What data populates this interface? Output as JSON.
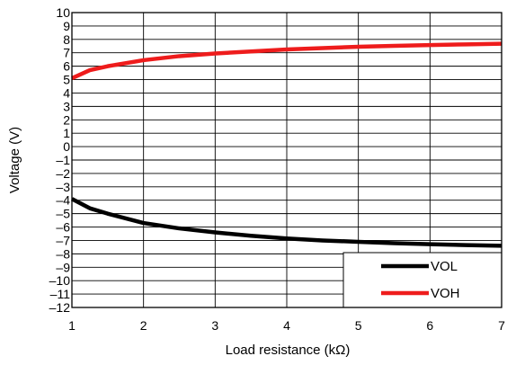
{
  "chart_data": {
    "type": "line",
    "xlabel": "Load resistance (kΩ)",
    "ylabel": "Voltage (V)",
    "xlim": [
      1,
      7
    ],
    "ylim": [
      -12,
      10
    ],
    "x_ticks": [
      "1",
      "2",
      "3",
      "4",
      "5",
      "6",
      "7"
    ],
    "y_ticks": [
      "10",
      "9",
      "8",
      "7",
      "6",
      "5",
      "4",
      "3",
      "2",
      "1",
      "0",
      "–1",
      "–2",
      "–3",
      "–4",
      "–5",
      "–6",
      "–7",
      "–8",
      "–9",
      "–10",
      "–11",
      "–12"
    ],
    "grid": true,
    "legend_position": "bottom-right",
    "series": [
      {
        "name": "VOL",
        "color": "#000000",
        "x": [
          1,
          1.25,
          1.5,
          2,
          2.5,
          3,
          3.5,
          4,
          4.5,
          5,
          5.5,
          6,
          6.5,
          7
        ],
        "y": [
          -3.9,
          -4.6,
          -5.0,
          -5.7,
          -6.1,
          -6.4,
          -6.65,
          -6.85,
          -7.0,
          -7.1,
          -7.2,
          -7.28,
          -7.35,
          -7.4
        ]
      },
      {
        "name": "VOH",
        "color": "#ee1c1c",
        "x": [
          1,
          1.25,
          1.5,
          2,
          2.5,
          3,
          3.5,
          4,
          4.5,
          5,
          5.5,
          6,
          6.5,
          7
        ],
        "y": [
          5.1,
          5.7,
          6.0,
          6.45,
          6.75,
          6.95,
          7.1,
          7.25,
          7.35,
          7.45,
          7.52,
          7.58,
          7.63,
          7.68
        ]
      }
    ]
  }
}
